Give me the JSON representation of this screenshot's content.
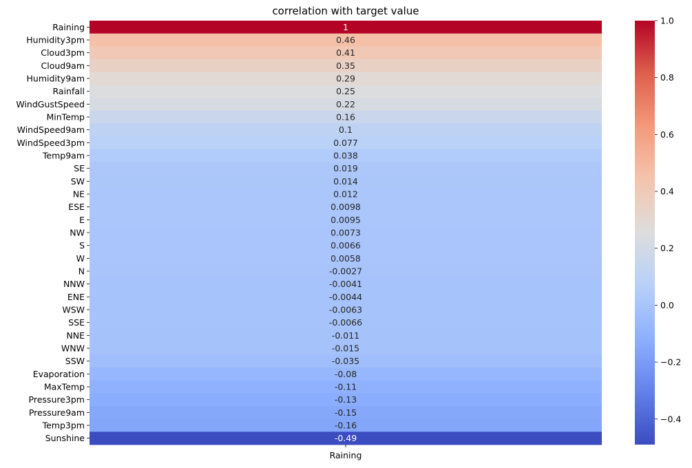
{
  "chart_data": {
    "type": "heatmap",
    "title": "correlation with target value",
    "x_tick_labels": [
      "Raining"
    ],
    "rows": [
      {
        "label": "Raining",
        "value": 1,
        "annotation": "1"
      },
      {
        "label": "Humidity3pm",
        "value": 0.46,
        "annotation": "0.46"
      },
      {
        "label": "Cloud3pm",
        "value": 0.41,
        "annotation": "0.41"
      },
      {
        "label": "Cloud9am",
        "value": 0.35,
        "annotation": "0.35"
      },
      {
        "label": "Humidity9am",
        "value": 0.29,
        "annotation": "0.29"
      },
      {
        "label": "Rainfall",
        "value": 0.25,
        "annotation": "0.25"
      },
      {
        "label": "WindGustSpeed",
        "value": 0.22,
        "annotation": "0.22"
      },
      {
        "label": "MinTemp",
        "value": 0.16,
        "annotation": "0.16"
      },
      {
        "label": "WindSpeed9am",
        "value": 0.1,
        "annotation": "0.1"
      },
      {
        "label": "WindSpeed3pm",
        "value": 0.077,
        "annotation": "0.077"
      },
      {
        "label": "Temp9am",
        "value": 0.038,
        "annotation": "0.038"
      },
      {
        "label": "SE",
        "value": 0.019,
        "annotation": "0.019"
      },
      {
        "label": "SW",
        "value": 0.014,
        "annotation": "0.014"
      },
      {
        "label": "NE",
        "value": 0.012,
        "annotation": "0.012"
      },
      {
        "label": "ESE",
        "value": 0.0098,
        "annotation": "0.0098"
      },
      {
        "label": "E",
        "value": 0.0095,
        "annotation": "0.0095"
      },
      {
        "label": "NW",
        "value": 0.0073,
        "annotation": "0.0073"
      },
      {
        "label": "S",
        "value": 0.0066,
        "annotation": "0.0066"
      },
      {
        "label": "W",
        "value": 0.0058,
        "annotation": "0.0058"
      },
      {
        "label": "N",
        "value": -0.0027,
        "annotation": "-0.0027"
      },
      {
        "label": "NNW",
        "value": -0.0041,
        "annotation": "-0.0041"
      },
      {
        "label": "ENE",
        "value": -0.0044,
        "annotation": "-0.0044"
      },
      {
        "label": "WSW",
        "value": -0.0063,
        "annotation": "-0.0063"
      },
      {
        "label": "SSE",
        "value": -0.0066,
        "annotation": "-0.0066"
      },
      {
        "label": "NNE",
        "value": -0.011,
        "annotation": "-0.011"
      },
      {
        "label": "WNW",
        "value": -0.015,
        "annotation": "-0.015"
      },
      {
        "label": "SSW",
        "value": -0.035,
        "annotation": "-0.035"
      },
      {
        "label": "Evaporation",
        "value": -0.08,
        "annotation": "-0.08"
      },
      {
        "label": "MaxTemp",
        "value": -0.11,
        "annotation": "-0.11"
      },
      {
        "label": "Pressure3pm",
        "value": -0.13,
        "annotation": "-0.13"
      },
      {
        "label": "Pressure9am",
        "value": -0.15,
        "annotation": "-0.15"
      },
      {
        "label": "Temp3pm",
        "value": -0.16,
        "annotation": "-0.16"
      },
      {
        "label": "Sunshine",
        "value": -0.49,
        "annotation": "-0.49"
      }
    ],
    "colormap": "coolwarm",
    "colorbar": {
      "vmin": -0.49,
      "vmax": 1.0,
      "ticks": [
        1.0,
        0.8,
        0.6,
        0.4,
        0.2,
        0.0,
        -0.2,
        -0.4
      ],
      "tick_labels": [
        "1.0",
        "0.8",
        "0.6",
        "0.4",
        "0.2",
        "0.0",
        "−0.2",
        "−0.4"
      ]
    }
  }
}
